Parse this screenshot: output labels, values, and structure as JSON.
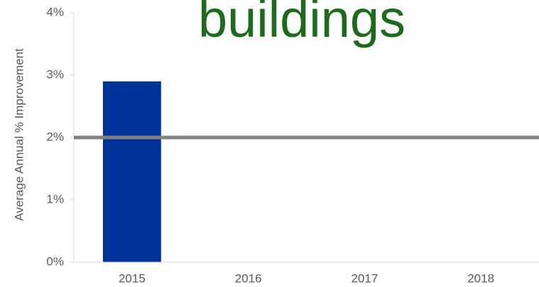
{
  "chart_data": {
    "type": "bar",
    "title": "buildings",
    "y_label": "Average Annual % Improvement",
    "categories": [
      "2015",
      "2016",
      "2017",
      "2018"
    ],
    "values": [
      2.9,
      null,
      null,
      null
    ],
    "color": "#003399",
    "reference_line": {
      "value": 2,
      "color": "#808080"
    },
    "ylim": [
      0,
      4
    ],
    "yticks": [
      {
        "value": 0,
        "label": "0%"
      },
      {
        "value": 1,
        "label": "1%"
      },
      {
        "value": 2,
        "label": "2%"
      },
      {
        "value": 3,
        "label": "3%"
      },
      {
        "value": 4,
        "label": "4%"
      }
    ],
    "grid": false
  }
}
